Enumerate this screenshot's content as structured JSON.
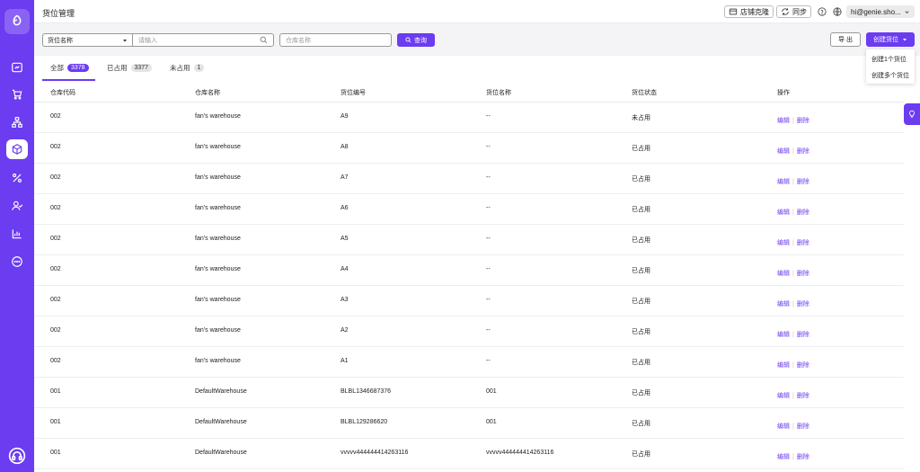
{
  "header": {
    "title": "货位管理",
    "store_clone": "店铺克隆",
    "sync": "同步",
    "account": "hi@genie.sho..."
  },
  "toolbar": {
    "select_value": "货位名称",
    "search_placeholder": "请输入",
    "warehouse_placeholder": "仓库名称",
    "query_label": "查询",
    "export_label": "导 出",
    "create_label": "创建货位"
  },
  "dropdown": {
    "items": [
      "创建1个货位",
      "创建多个货位"
    ]
  },
  "tabs": [
    {
      "label": "全部",
      "count": "3378"
    },
    {
      "label": "已占用",
      "count": "3377"
    },
    {
      "label": "未占用",
      "count": "1"
    }
  ],
  "table": {
    "columns": [
      "仓库代码",
      "仓库名称",
      "货位编号",
      "货位名称",
      "货位状态",
      "操作"
    ],
    "edit_label": "编辑",
    "delete_label": "删除",
    "rows": [
      {
        "code": "002",
        "warehouse": "fan’s warehouse",
        "number": "A9",
        "name": "--",
        "status": "未占用"
      },
      {
        "code": "002",
        "warehouse": "fan’s warehouse",
        "number": "A8",
        "name": "--",
        "status": "已占用"
      },
      {
        "code": "002",
        "warehouse": "fan’s warehouse",
        "number": "A7",
        "name": "--",
        "status": "已占用"
      },
      {
        "code": "002",
        "warehouse": "fan’s warehouse",
        "number": "A6",
        "name": "--",
        "status": "已占用"
      },
      {
        "code": "002",
        "warehouse": "fan’s warehouse",
        "number": "A5",
        "name": "--",
        "status": "已占用"
      },
      {
        "code": "002",
        "warehouse": "fan’s warehouse",
        "number": "A4",
        "name": "--",
        "status": "已占用"
      },
      {
        "code": "002",
        "warehouse": "fan’s warehouse",
        "number": "A3",
        "name": "--",
        "status": "已占用"
      },
      {
        "code": "002",
        "warehouse": "fan’s warehouse",
        "number": "A2",
        "name": "--",
        "status": "已占用"
      },
      {
        "code": "002",
        "warehouse": "fan’s warehouse",
        "number": "A1",
        "name": "--",
        "status": "已占用"
      },
      {
        "code": "001",
        "warehouse": "DefaultWarehouse",
        "number": "BLBL1346687376",
        "name": "001",
        "status": "已占用"
      },
      {
        "code": "001",
        "warehouse": "DefaultWarehouse",
        "number": "BLBL129286620",
        "name": "001",
        "status": "已占用"
      },
      {
        "code": "001",
        "warehouse": "DefaultWarehouse",
        "number": "vvvvv444444414263116",
        "name": "vvvvv444444414263116",
        "status": "已占用"
      }
    ]
  },
  "sidebar": {
    "icons": [
      "logo-icon",
      "dashboard-icon",
      "cart-icon",
      "org-chart-icon",
      "package-icon",
      "percent-icon",
      "users-icon",
      "chart-icon",
      "more-icon",
      "headset-icon"
    ]
  },
  "colors": {
    "accent": "#6b3cf0"
  }
}
